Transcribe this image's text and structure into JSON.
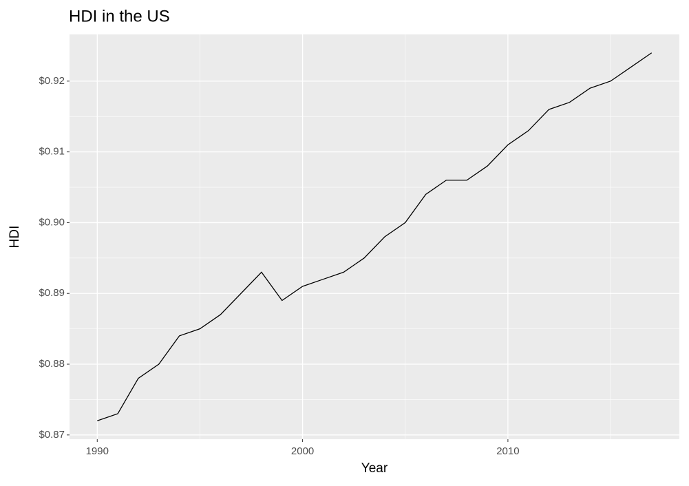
{
  "chart_data": {
    "type": "line",
    "title": "HDI in the US",
    "x_label": "Year",
    "y_label": "HDI",
    "x": [
      1990,
      1991,
      1992,
      1993,
      1994,
      1995,
      1996,
      1997,
      1998,
      1999,
      2000,
      2001,
      2002,
      2003,
      2004,
      2005,
      2006,
      2007,
      2008,
      2009,
      2010,
      2011,
      2012,
      2013,
      2014,
      2015,
      2016,
      2017
    ],
    "series": [
      {
        "name": "HDI",
        "color": "#000000",
        "values": [
          0.872,
          0.873,
          0.878,
          0.88,
          0.884,
          0.885,
          0.887,
          0.89,
          0.893,
          0.889,
          0.891,
          0.892,
          0.893,
          0.895,
          0.898,
          0.9,
          0.904,
          0.906,
          0.906,
          0.908,
          0.911,
          0.913,
          0.916,
          0.917,
          0.919,
          0.92,
          0.922,
          0.924
        ]
      }
    ],
    "xlim": [
      1988.65,
      2018.35
    ],
    "xticks": [
      1990,
      2000,
      2010
    ],
    "ylim": [
      0.8694,
      0.9266
    ],
    "yticks": [
      {
        "value": 0.87,
        "label": "$0.87"
      },
      {
        "value": 0.88,
        "label": "$0.88"
      },
      {
        "value": 0.89,
        "label": "$0.89"
      },
      {
        "value": 0.9,
        "label": "$0.90"
      },
      {
        "value": 0.91,
        "label": "$0.91"
      },
      {
        "value": 0.92,
        "label": "$0.92"
      }
    ],
    "grid": true
  }
}
